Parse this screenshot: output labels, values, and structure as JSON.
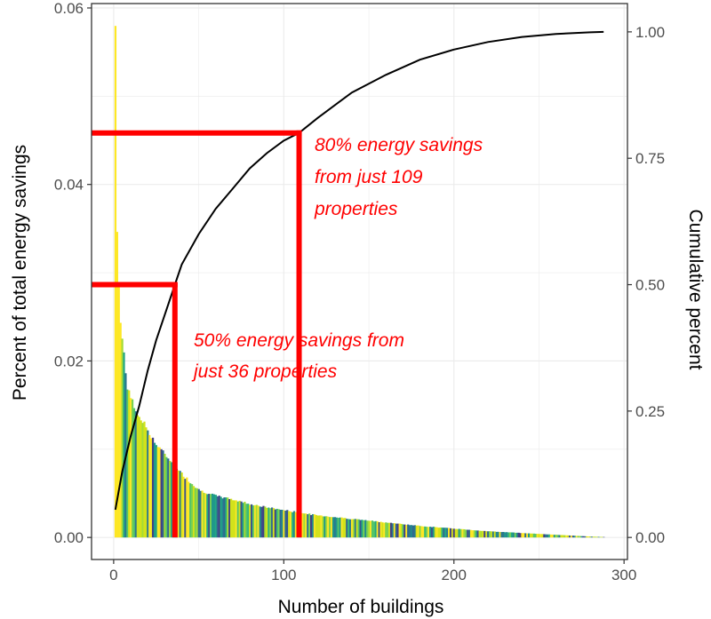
{
  "chart_data": {
    "type": "bar",
    "xlabel": "Number of buildings",
    "ylabel_left": "Percent of total energy savings",
    "ylabel_right": "Cumulative percent",
    "xlim": [
      -13,
      302
    ],
    "ylim_left": [
      -0.0025,
      0.0605
    ],
    "ylim_right": [
      -0.0436,
      1.056
    ],
    "x_ticks": [
      0,
      100,
      200,
      300
    ],
    "x_tick_labels": [
      "0",
      "100",
      "200",
      "300"
    ],
    "y_left_ticks": [
      0.0,
      0.02,
      0.04,
      0.06
    ],
    "y_left_tick_labels": [
      "0.00",
      "0.02",
      "0.04",
      "0.06"
    ],
    "y_right_ticks": [
      0.0,
      0.25,
      0.5,
      0.75,
      1.0
    ],
    "y_right_tick_labels": [
      "0.00",
      "0.25",
      "0.50",
      "0.75",
      "1.00"
    ],
    "n_buildings": 288,
    "bars_envelope": {
      "x": [
        1,
        2,
        4,
        6,
        8,
        10,
        12,
        15,
        20,
        25,
        30,
        36,
        40,
        45,
        50,
        60,
        70,
        80,
        90,
        100,
        109,
        120,
        140,
        160,
        180,
        200,
        220,
        240,
        260,
        270,
        280,
        288
      ],
      "y": [
        0.058,
        0.0345,
        0.0247,
        0.0205,
        0.0172,
        0.0158,
        0.0147,
        0.0137,
        0.0122,
        0.0105,
        0.0094,
        0.0082,
        0.0072,
        0.0063,
        0.0054,
        0.0047,
        0.0043,
        0.0038,
        0.0034,
        0.0031,
        0.0028,
        0.0025,
        0.0021,
        0.0017,
        0.0013,
        0.001,
        0.0007,
        0.0005,
        0.0003,
        0.0002,
        0.0001,
        5e-05
      ]
    },
    "bar_colors": [
      "#fde725",
      "#d2e21b",
      "#a5db36",
      "#7ad151",
      "#54c568",
      "#35b779",
      "#22a884",
      "#1f988b",
      "#23888e",
      "#2a788e",
      "#31688e",
      "#3a538b",
      "#433e85"
    ],
    "cumulative_line": {
      "color": "#000000",
      "x": [
        1,
        5,
        10,
        15,
        20,
        25,
        30,
        36,
        40,
        50,
        60,
        70,
        80,
        90,
        100,
        109,
        120,
        140,
        160,
        180,
        200,
        220,
        240,
        260,
        280,
        288
      ],
      "y": [
        0.055,
        0.13,
        0.2,
        0.26,
        0.33,
        0.39,
        0.44,
        0.5,
        0.54,
        0.6,
        0.65,
        0.69,
        0.73,
        0.76,
        0.785,
        0.8,
        0.83,
        0.88,
        0.915,
        0.945,
        0.965,
        0.98,
        0.99,
        0.996,
        0.999,
        1.0
      ]
    },
    "annotations": [
      {
        "color": "#ff0000",
        "cutoff_x": 109,
        "level_right": 0.8,
        "lines": [
          "80% energy savings",
          "from just 109",
          "properties"
        ]
      },
      {
        "color": "#ff0000",
        "cutoff_x": 36,
        "level_right": 0.5,
        "lines": [
          "50% energy savings from",
          "just 36 properties"
        ]
      }
    ],
    "grid": true,
    "panel_border": true
  }
}
